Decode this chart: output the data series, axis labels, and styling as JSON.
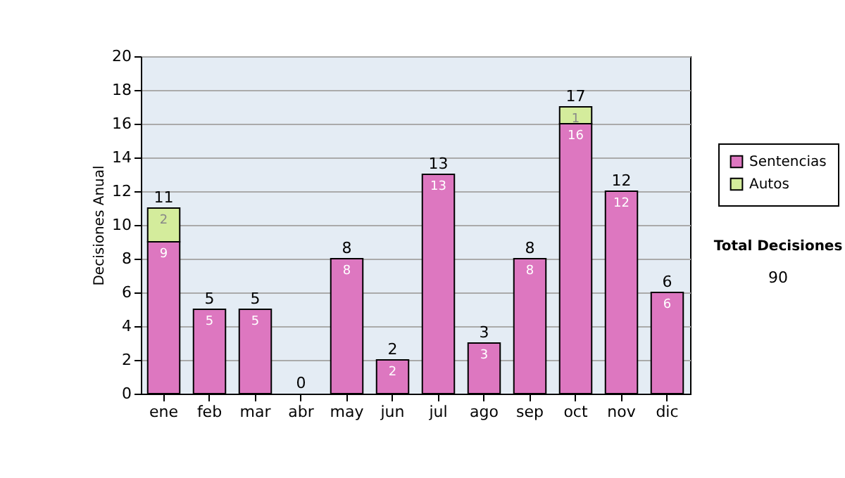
{
  "chart_data": {
    "type": "bar",
    "stacked": true,
    "ylabel": "Decisiones Anual",
    "categories": [
      "ene",
      "feb",
      "mar",
      "abr",
      "may",
      "jun",
      "jul",
      "ago",
      "sep",
      "oct",
      "nov",
      "dic"
    ],
    "series": [
      {
        "name": "Sentencias",
        "color": "#dd77c0",
        "values": [
          9,
          5,
          5,
          0,
          8,
          2,
          13,
          3,
          8,
          16,
          12,
          6
        ],
        "value_labels": [
          "9",
          "5",
          "5",
          null,
          "8",
          "2",
          "13",
          "3",
          "8",
          "16",
          "12",
          "6"
        ]
      },
      {
        "name": "Autos",
        "color": "#d4ec9c",
        "values": [
          2,
          0,
          0,
          0,
          0,
          0,
          0,
          0,
          0,
          1,
          0,
          0
        ],
        "value_labels": [
          "2",
          null,
          null,
          null,
          null,
          null,
          null,
          null,
          null,
          "1",
          null,
          null
        ]
      }
    ],
    "totals": [
      "11",
      "5",
      "5",
      "0",
      "8",
      "2",
      "13",
      "3",
      "8",
      "17",
      "12",
      "6"
    ],
    "ylim": [
      0,
      20
    ],
    "yticks": [
      0,
      2,
      4,
      6,
      8,
      10,
      12,
      14,
      16,
      18,
      20
    ],
    "grid": "y",
    "legend": "right",
    "annotations": [
      "Total Decisiones",
      "90"
    ]
  }
}
